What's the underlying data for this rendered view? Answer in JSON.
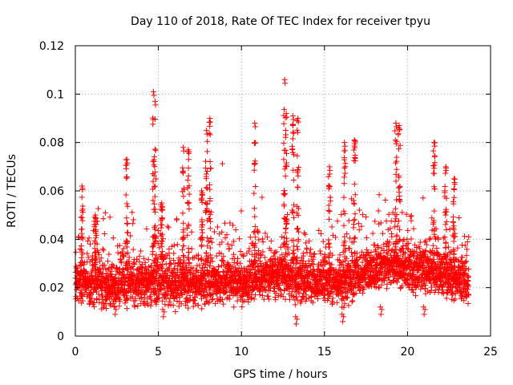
{
  "chart_data": {
    "type": "scatter",
    "title": "Day 110 of 2018, Rate Of TEC Index for receiver tpyu",
    "xlabel": "GPS time / hours",
    "ylabel": "ROTI / TECUs",
    "xlim": [
      0,
      25
    ],
    "ylim": [
      0,
      0.12
    ],
    "xticks": [
      0,
      5,
      10,
      15,
      20,
      25
    ],
    "xtick_labels": [
      "0",
      "5",
      "10",
      "15",
      "20",
      "25"
    ],
    "yticks": [
      0,
      0.02,
      0.04,
      0.06,
      0.08,
      0.1,
      0.12
    ],
    "ytick_labels": [
      "0",
      "0.02",
      "0.04",
      "0.06",
      "0.08",
      "0.1",
      "0.12"
    ],
    "grid": true,
    "marker": "plus",
    "series": [
      {
        "name": "ROTI",
        "color": "#ff0000",
        "x_range": [
          0,
          23.7
        ],
        "baseline_envelope": [
          [
            0,
            0.024
          ],
          [
            1,
            0.022
          ],
          [
            2,
            0.02
          ],
          [
            3,
            0.022
          ],
          [
            4,
            0.022
          ],
          [
            5,
            0.023
          ],
          [
            6,
            0.022
          ],
          [
            7,
            0.021
          ],
          [
            8,
            0.022
          ],
          [
            9,
            0.023
          ],
          [
            10,
            0.022
          ],
          [
            11,
            0.024
          ],
          [
            12,
            0.025
          ],
          [
            13,
            0.024
          ],
          [
            14,
            0.022
          ],
          [
            15,
            0.023
          ],
          [
            16,
            0.021
          ],
          [
            17,
            0.026
          ],
          [
            18,
            0.028
          ],
          [
            19,
            0.029
          ],
          [
            20,
            0.028
          ],
          [
            21,
            0.027
          ],
          [
            22,
            0.026
          ],
          [
            23,
            0.024
          ],
          [
            23.7,
            0.022
          ]
        ],
        "peaks": [
          [
            0.4,
            0.062
          ],
          [
            1.2,
            0.05
          ],
          [
            3.1,
            0.073
          ],
          [
            4.7,
            0.101
          ],
          [
            4.8,
            0.097
          ],
          [
            5.2,
            0.055
          ],
          [
            6.5,
            0.078
          ],
          [
            6.8,
            0.077
          ],
          [
            7.6,
            0.06
          ],
          [
            7.9,
            0.085
          ],
          [
            8.1,
            0.09
          ],
          [
            10.8,
            0.088
          ],
          [
            12.6,
            0.106
          ],
          [
            12.7,
            0.092
          ],
          [
            13.1,
            0.091
          ],
          [
            13.4,
            0.09
          ],
          [
            15.3,
            0.07
          ],
          [
            16.2,
            0.08
          ],
          [
            16.8,
            0.081
          ],
          [
            19.3,
            0.088
          ],
          [
            19.5,
            0.087
          ],
          [
            21.6,
            0.08
          ],
          [
            22.3,
            0.07
          ],
          [
            22.8,
            0.065
          ]
        ],
        "lows": [
          [
            2.4,
            0.009
          ],
          [
            5.3,
            0.008
          ],
          [
            13.3,
            0.005
          ],
          [
            16.1,
            0.006
          ],
          [
            18.4,
            0.009
          ],
          [
            21.0,
            0.009
          ]
        ]
      }
    ]
  }
}
